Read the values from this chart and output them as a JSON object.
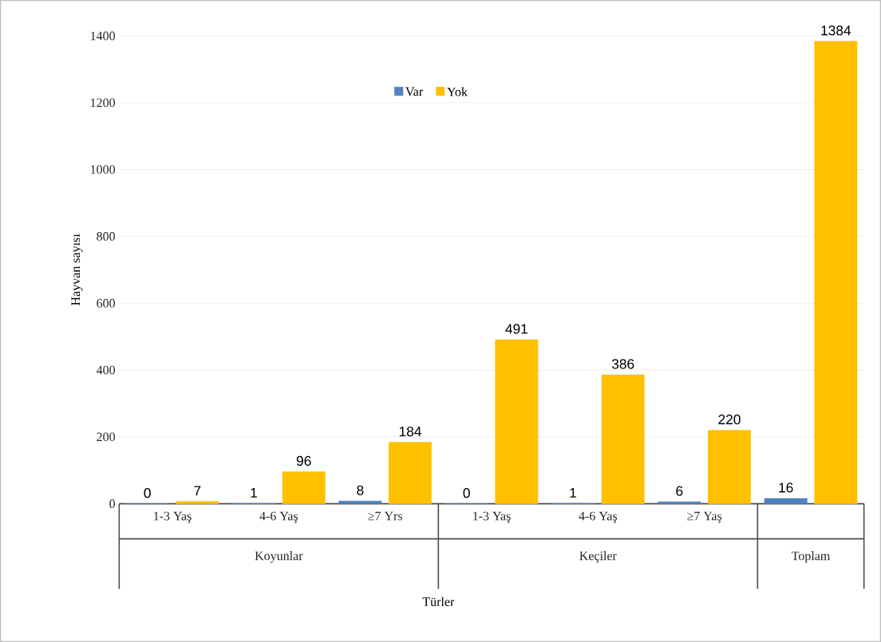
{
  "chart_data": {
    "type": "bar",
    "ylabel": "Hayvan sayısı",
    "categories": [
      "1-3 Yaş",
      "4-6 Yaş",
      "≥7 Yrs",
      "1-3 Yaş",
      "4-6 Yaş",
      "≥7 Yaş",
      null
    ],
    "series": [
      {
        "name": "Var",
        "color": "#4f81bd",
        "values": [
          0,
          1,
          8,
          0,
          1,
          6,
          16
        ]
      },
      {
        "name": "Yok",
        "color": "#ffc000",
        "values": [
          7,
          96,
          184,
          491,
          386,
          220,
          1384
        ]
      }
    ],
    "annotations": [
      "Koyunlar",
      "Keçiler",
      "Toplam",
      "Türler"
    ],
    "ylim": [
      0,
      1400
    ],
    "yticks": [
      0,
      200,
      400,
      600,
      800,
      1000,
      1200,
      1400
    ],
    "grid": "y",
    "legend": "top",
    "data_labels": true
  }
}
